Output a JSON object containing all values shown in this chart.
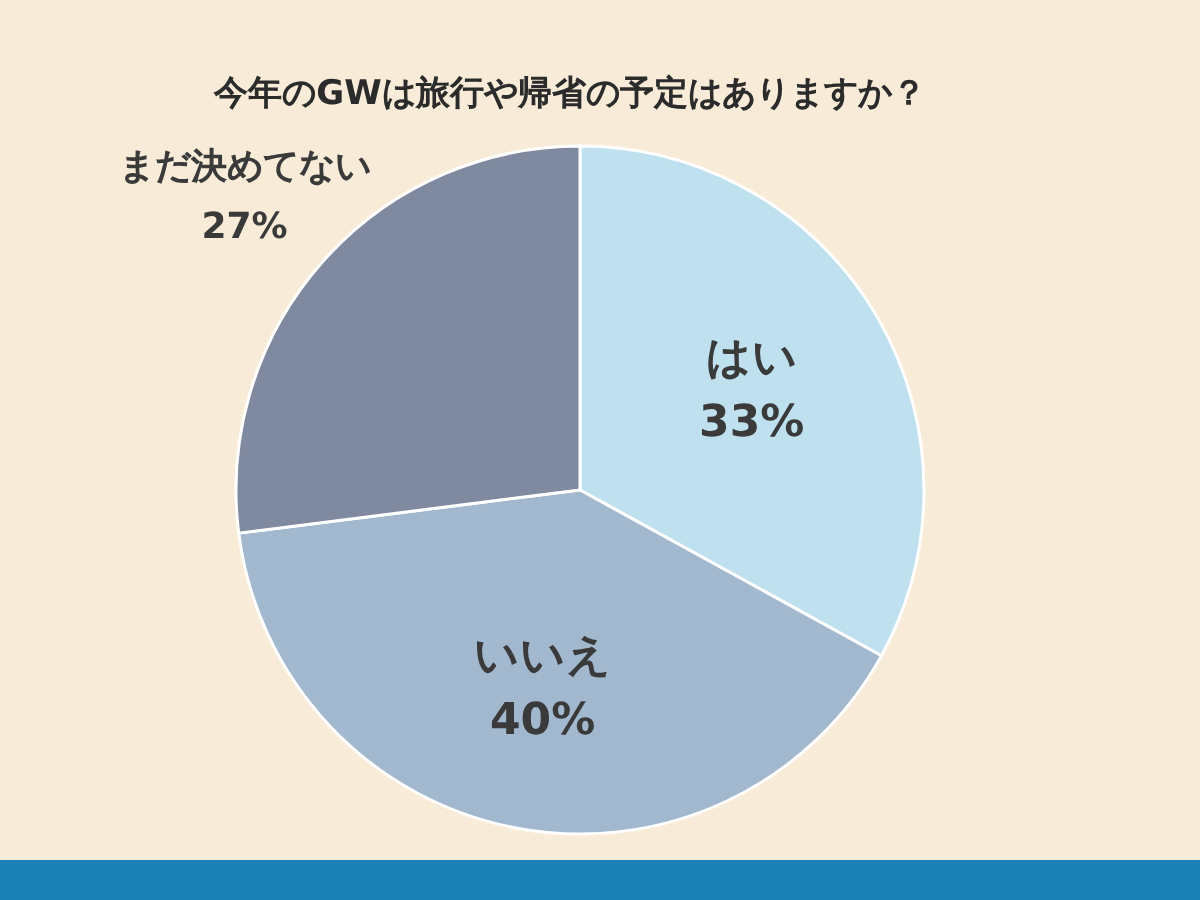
{
  "chart_data": {
    "type": "pie",
    "title": "今年のGWは旅行や帰省の予定はありますか？",
    "categories": [
      "はい",
      "いいえ",
      "まだ決めてない"
    ],
    "values": [
      33,
      40,
      27
    ],
    "value_labels": [
      "33%",
      "40%",
      "27%"
    ],
    "colors": [
      "#bfe0ee",
      "#a2b8ce",
      "#7f899f"
    ]
  }
}
